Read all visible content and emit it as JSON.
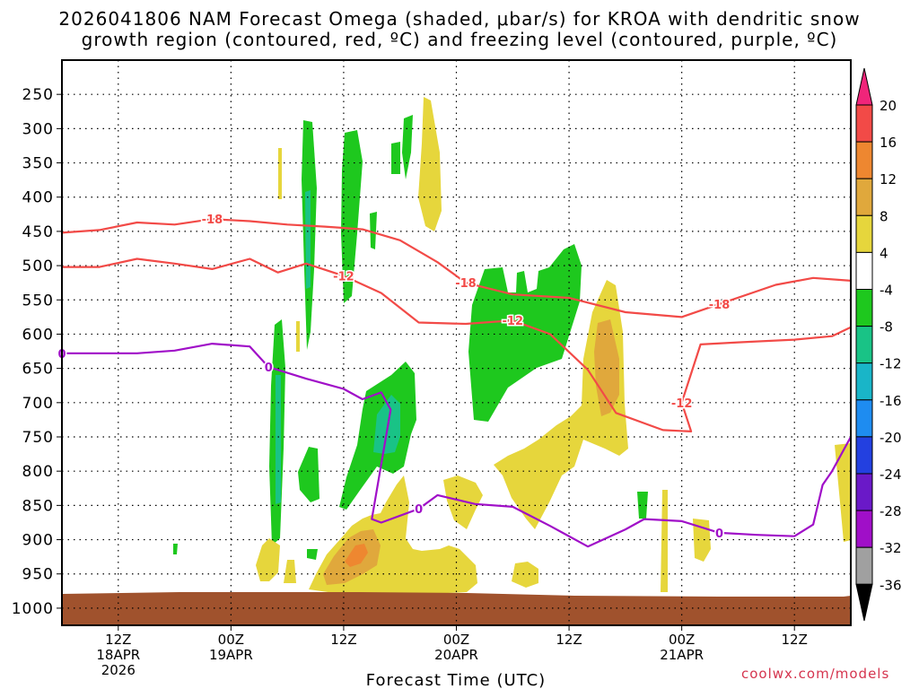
{
  "title_line1": "2026041806 NAM Forecast Omega (shaded, μbar/s) for KROA with dendritic snow",
  "title_line2": "growth region (contoured, red, ºC) and freezing level (contoured, purple, ºC)",
  "credit": "coolwx.com/models",
  "chart_data": {
    "type": "time-height cross section",
    "title": "2026041806 NAM Forecast Omega (shaded, μbar/s) for KROA with dendritic snow growth region (contoured, red, ºC) and freezing level (contoured, purple, ºC)",
    "xlabel": "Forecast Time (UTC)",
    "ylabel": "",
    "x_ticks": [
      {
        "hour": 6,
        "line1": "12Z",
        "line2": "18APR",
        "line3": "2026"
      },
      {
        "hour": 18,
        "line1": "00Z",
        "line2": "19APR",
        "line3": ""
      },
      {
        "hour": 30,
        "line1": "12Z",
        "line2": "",
        "line3": ""
      },
      {
        "hour": 42,
        "line1": "00Z",
        "line2": "20APR",
        "line3": ""
      },
      {
        "hour": 54,
        "line1": "12Z",
        "line2": "",
        "line3": ""
      },
      {
        "hour": 66,
        "line1": "00Z",
        "line2": "21APR",
        "line3": ""
      },
      {
        "hour": 78,
        "line1": "12Z",
        "line2": "",
        "line3": ""
      }
    ],
    "x_range_hours": [
      0,
      84
    ],
    "y_ticks": [
      "250",
      "300",
      "350",
      "400",
      "450",
      "500",
      "550",
      "600",
      "650",
      "700",
      "750",
      "800",
      "850",
      "900",
      "950",
      "1000"
    ],
    "y_range_mb": [
      200,
      1025
    ],
    "grid": "dotted",
    "colorbar": {
      "labels": [
        "20",
        "16",
        "12",
        "8",
        "4",
        "-4",
        "-8",
        "-12",
        "-16",
        "-20",
        "-24",
        "-28",
        "-32",
        "-36"
      ],
      "colors": {
        "gt20": "#f0257a",
        "16_20": "#f24a47",
        "12_16": "#ee8730",
        "8_12": "#e0a83c",
        "4_8": "#e6d63c",
        "m4_4": "#ffffff",
        "m8_m4": "#1ec81e",
        "m12_m8": "#19c386",
        "m16_m12": "#19b5c8",
        "m20_m16": "#1e8cf0",
        "m24_m20": "#2340e0",
        "m28_m24": "#6a19c8",
        "m32_m28": "#a00fc8",
        "m36_m32": "#a0a0a0",
        "lt_m36": "#000000"
      }
    },
    "contour_labels": {
      "red": [
        "-18",
        "-12"
      ],
      "purple": [
        "0"
      ]
    },
    "red_contours": [
      {
        "value": "-18",
        "points": [
          [
            0,
            452
          ],
          [
            4,
            448
          ],
          [
            8,
            437
          ],
          [
            12,
            440
          ],
          [
            16,
            432
          ],
          [
            20,
            435
          ],
          [
            24,
            440
          ],
          [
            28,
            443
          ],
          [
            32,
            447
          ],
          [
            36,
            463
          ],
          [
            40,
            495
          ],
          [
            43,
            525
          ],
          [
            48,
            542
          ],
          [
            54,
            547
          ],
          [
            60,
            568
          ],
          [
            66,
            575
          ],
          [
            70,
            556
          ],
          [
            76,
            528
          ],
          [
            80,
            518
          ],
          [
            84,
            522
          ]
        ]
      },
      {
        "value": "-12",
        "points": [
          [
            0,
            502
          ],
          [
            4,
            502
          ],
          [
            8,
            490
          ],
          [
            12,
            497
          ],
          [
            16,
            505
          ],
          [
            20,
            490
          ],
          [
            23,
            510
          ],
          [
            26,
            497
          ],
          [
            30,
            515
          ],
          [
            34,
            540
          ],
          [
            38,
            583
          ],
          [
            43,
            585
          ],
          [
            48,
            580
          ],
          [
            52,
            600
          ],
          [
            56,
            652
          ],
          [
            59,
            715
          ],
          [
            64,
            740
          ],
          [
            67,
            742
          ],
          [
            66,
            700
          ],
          [
            68,
            615
          ],
          [
            72,
            612
          ],
          [
            78,
            608
          ],
          [
            82,
            603
          ],
          [
            84,
            590
          ]
        ]
      }
    ],
    "purple_contours": [
      {
        "value": "0",
        "points": [
          [
            0,
            628
          ],
          [
            4,
            628
          ],
          [
            8,
            628
          ],
          [
            12,
            624
          ],
          [
            16,
            614
          ],
          [
            20,
            618
          ],
          [
            22,
            648
          ],
          [
            26,
            665
          ],
          [
            30,
            680
          ],
          [
            32,
            695
          ],
          [
            34,
            685
          ],
          [
            35,
            710
          ],
          [
            34,
            790
          ],
          [
            33,
            870
          ],
          [
            34,
            875
          ],
          [
            38,
            855
          ],
          [
            40,
            835
          ],
          [
            44,
            848
          ],
          [
            48,
            852
          ],
          [
            52,
            880
          ],
          [
            56,
            910
          ],
          [
            60,
            885
          ],
          [
            62,
            870
          ],
          [
            66,
            873
          ],
          [
            70,
            890
          ],
          [
            74,
            893
          ],
          [
            78,
            895
          ],
          [
            80,
            878
          ],
          [
            81,
            820
          ],
          [
            82,
            800
          ],
          [
            84,
            750
          ]
        ]
      }
    ]
  }
}
